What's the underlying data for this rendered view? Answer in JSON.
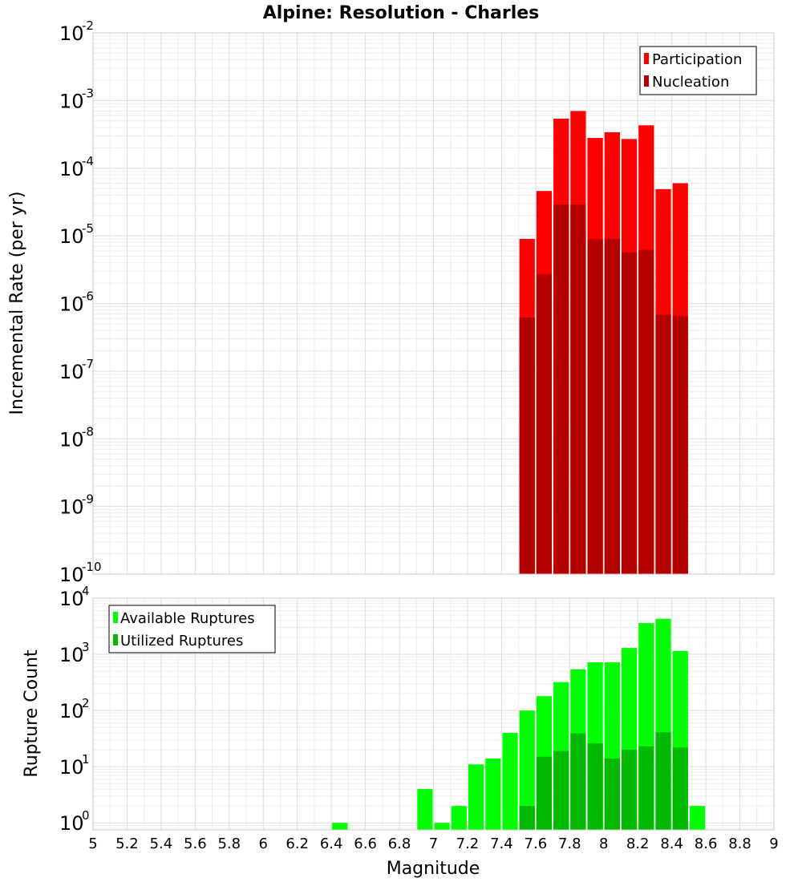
{
  "chart_data": [
    {
      "type": "bar",
      "title": "Alpine: Resolution - Charles",
      "xlabel": "",
      "ylabel": "Incremental Rate (per yr)",
      "yscale": "log",
      "ylim": [
        1e-10,
        0.01
      ],
      "xlim": [
        5,
        9
      ],
      "grid": true,
      "legend_position": "top-right",
      "x_tick_labels": [],
      "y_tick_exponents": [
        "-10",
        "-9",
        "-8",
        "-7",
        "-6",
        "-5",
        "-4",
        "-3",
        "-2"
      ],
      "bin_width": 0.1,
      "x": [
        7.55,
        7.65,
        7.75,
        7.85,
        7.95,
        8.05,
        8.15,
        8.25,
        8.35,
        8.45
      ],
      "series": [
        {
          "name": "Participation",
          "color": "#ff0000",
          "values": [
            9e-06,
            4.6e-05,
            0.00054,
            0.0007,
            0.00028,
            0.00034,
            0.00027,
            0.00043,
            4.9e-05,
            6e-05
          ]
        },
        {
          "name": "Nucleation",
          "color": "#b30000",
          "values": [
            6.2e-07,
            2.7e-06,
            2.9e-05,
            2.9e-05,
            8.9e-06,
            9e-06,
            5.7e-06,
            6.2e-06,
            6.8e-07,
            6.5e-07
          ]
        }
      ]
    },
    {
      "type": "bar",
      "title": "",
      "xlabel": "Magnitude",
      "ylabel": "Rupture Count",
      "yscale": "log",
      "ylim": [
        0.75,
        10000
      ],
      "xlim": [
        5,
        9
      ],
      "grid": true,
      "legend_position": "top-left",
      "x_tick_labels": [
        "5",
        "5.2",
        "5.4",
        "5.6",
        "5.8",
        "6",
        "6.2",
        "6.4",
        "6.6",
        "6.8",
        "7",
        "7.2",
        "7.4",
        "7.6",
        "7.8",
        "8",
        "8.2",
        "8.4",
        "8.6",
        "8.8",
        "9"
      ],
      "y_tick_exponents": [
        "0",
        "1",
        "2",
        "3",
        "4"
      ],
      "bin_width": 0.1,
      "series": [
        {
          "name": "Available Ruptures",
          "color": "#00ff00",
          "x": [
            6.45,
            6.95,
            7.05,
            7.15,
            7.25,
            7.35,
            7.45,
            7.55,
            7.65,
            7.75,
            7.85,
            7.95,
            8.05,
            8.15,
            8.25,
            8.35,
            8.45,
            8.55
          ],
          "values": [
            1,
            4,
            1,
            2,
            11,
            14,
            40,
            100,
            180,
            320,
            540,
            720,
            720,
            1300,
            3600,
            4300,
            1150,
            2
          ]
        },
        {
          "name": "Utilized Ruptures",
          "color": "#00b900",
          "x": [
            7.55,
            7.65,
            7.75,
            7.85,
            7.95,
            8.05,
            8.15,
            8.25,
            8.35,
            8.45
          ],
          "values": [
            2,
            15,
            19,
            39,
            26,
            14,
            20,
            23,
            41,
            22
          ]
        }
      ]
    }
  ]
}
